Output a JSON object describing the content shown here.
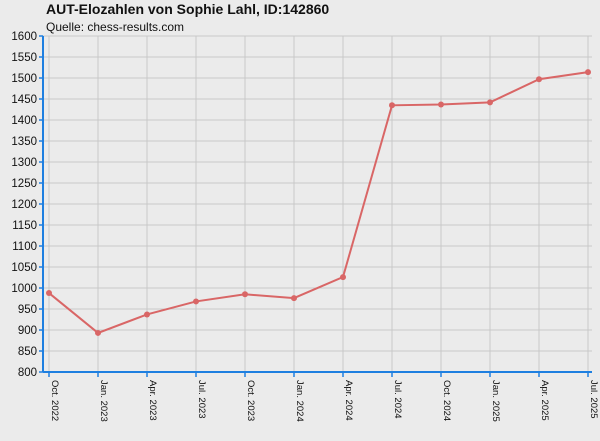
{
  "header": {
    "title": "AUT-Elozahlen von Sophie Lahl, ID:142860",
    "subtitle": "Quelle: chess-results.com"
  },
  "chart_data": {
    "type": "line",
    "title": "AUT-Elozahlen von Sophie Lahl, ID:142860",
    "subtitle": "Quelle: chess-results.com",
    "xlabel": "",
    "ylabel": "",
    "ylim": [
      800,
      1600
    ],
    "y_ticks": [
      800,
      850,
      900,
      950,
      1000,
      1050,
      1100,
      1150,
      1200,
      1250,
      1300,
      1350,
      1400,
      1450,
      1500,
      1550,
      1600
    ],
    "x_ticks": [
      "Oct. 2022",
      "Jan. 2023",
      "Apr. 2023",
      "Jul. 2023",
      "Oct. 2023",
      "Jan. 2024",
      "Apr. 2024",
      "Jul. 2024",
      "Oct. 2024",
      "Jan. 2025",
      "Apr. 2025",
      "Jul. 2025"
    ],
    "grid": true,
    "colors": {
      "line": "#d96666",
      "axis": "#1e7fe0",
      "grid": "#c8c8c8",
      "background": "#ebebeb"
    },
    "series": [
      {
        "points": [
          {
            "x": "Oct. 2022",
            "y": 988
          },
          {
            "x": "Jan. 2023",
            "y": 893
          },
          {
            "x": "Apr. 2023",
            "y": 937
          },
          {
            "x": "Jul. 2023",
            "y": 968
          },
          {
            "x": "Oct. 2023",
            "y": 985
          },
          {
            "x": "Jan. 2024",
            "y": 976
          },
          {
            "x": "Apr. 2024",
            "y": 1026
          },
          {
            "x": "Jul. 2024",
            "y": 1435
          },
          {
            "x": "Oct. 2024",
            "y": 1437
          },
          {
            "x": "Jan. 2025",
            "y": 1442
          },
          {
            "x": "Apr. 2025",
            "y": 1497
          },
          {
            "x": "Jul. 2025",
            "y": 1514
          }
        ]
      }
    ]
  }
}
